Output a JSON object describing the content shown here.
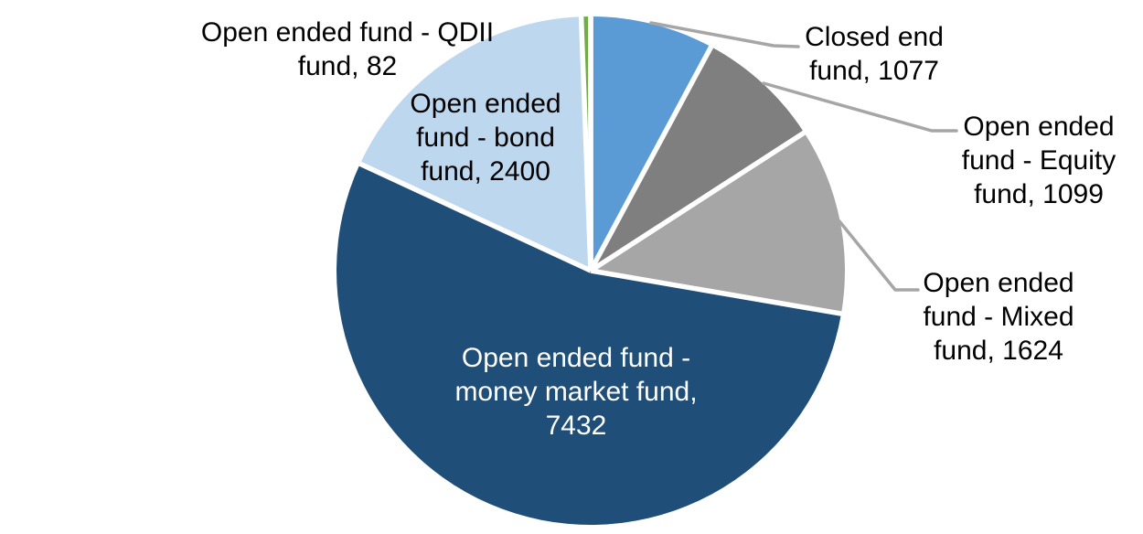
{
  "chart_data": {
    "type": "pie",
    "title": "",
    "legend_position": "none",
    "grid": false,
    "total": 13714,
    "start_angle_deg": 0,
    "direction": "clockwise",
    "slice_border_color": "#FFFFFF",
    "leader_line_color": "#A6A6A6",
    "background_color": "#FFFFFF",
    "slices": [
      {
        "id": "closed-end-fund",
        "label": "Closed end fund",
        "value": 1077,
        "color": "#5B9BD5",
        "label_lines": [
          "Closed end",
          "fund, 1077"
        ],
        "label_text_color": "#000000",
        "leader_line": true
      },
      {
        "id": "open-ended-equity-fund",
        "label": "Open ended fund - Equity fund",
        "value": 1099,
        "color": "#7F7F7F",
        "label_lines": [
          "Open ended",
          "fund - Equity",
          "fund, 1099"
        ],
        "label_text_color": "#000000",
        "leader_line": true
      },
      {
        "id": "open-ended-mixed-fund",
        "label": "Open ended fund - Mixed fund",
        "value": 1624,
        "color": "#A6A6A6",
        "label_lines": [
          "Open ended",
          "fund - Mixed",
          "fund, 1624"
        ],
        "label_text_color": "#000000",
        "leader_line": true
      },
      {
        "id": "open-ended-money-market-fund",
        "label": "Open ended fund - money market fund",
        "value": 7432,
        "color": "#1F4E79",
        "label_lines": [
          "Open ended fund -",
          "money market fund,",
          "7432"
        ],
        "label_text_color": "#FFFFFF",
        "leader_line": false
      },
      {
        "id": "open-ended-bond-fund",
        "label": "Open ended fund - bond fund",
        "value": 2400,
        "color": "#BDD7EE",
        "label_lines": [
          "Open ended",
          "fund - bond",
          "fund, 2400"
        ],
        "label_text_color": "#000000",
        "leader_line": false
      },
      {
        "id": "open-ended-qdii-fund",
        "label": "Open ended fund - QDII fund",
        "value": 82,
        "color": "#70AD47",
        "label_lines": [
          "Open ended fund - QDII",
          "fund, 82"
        ],
        "label_text_color": "#000000",
        "leader_line": false
      }
    ]
  }
}
